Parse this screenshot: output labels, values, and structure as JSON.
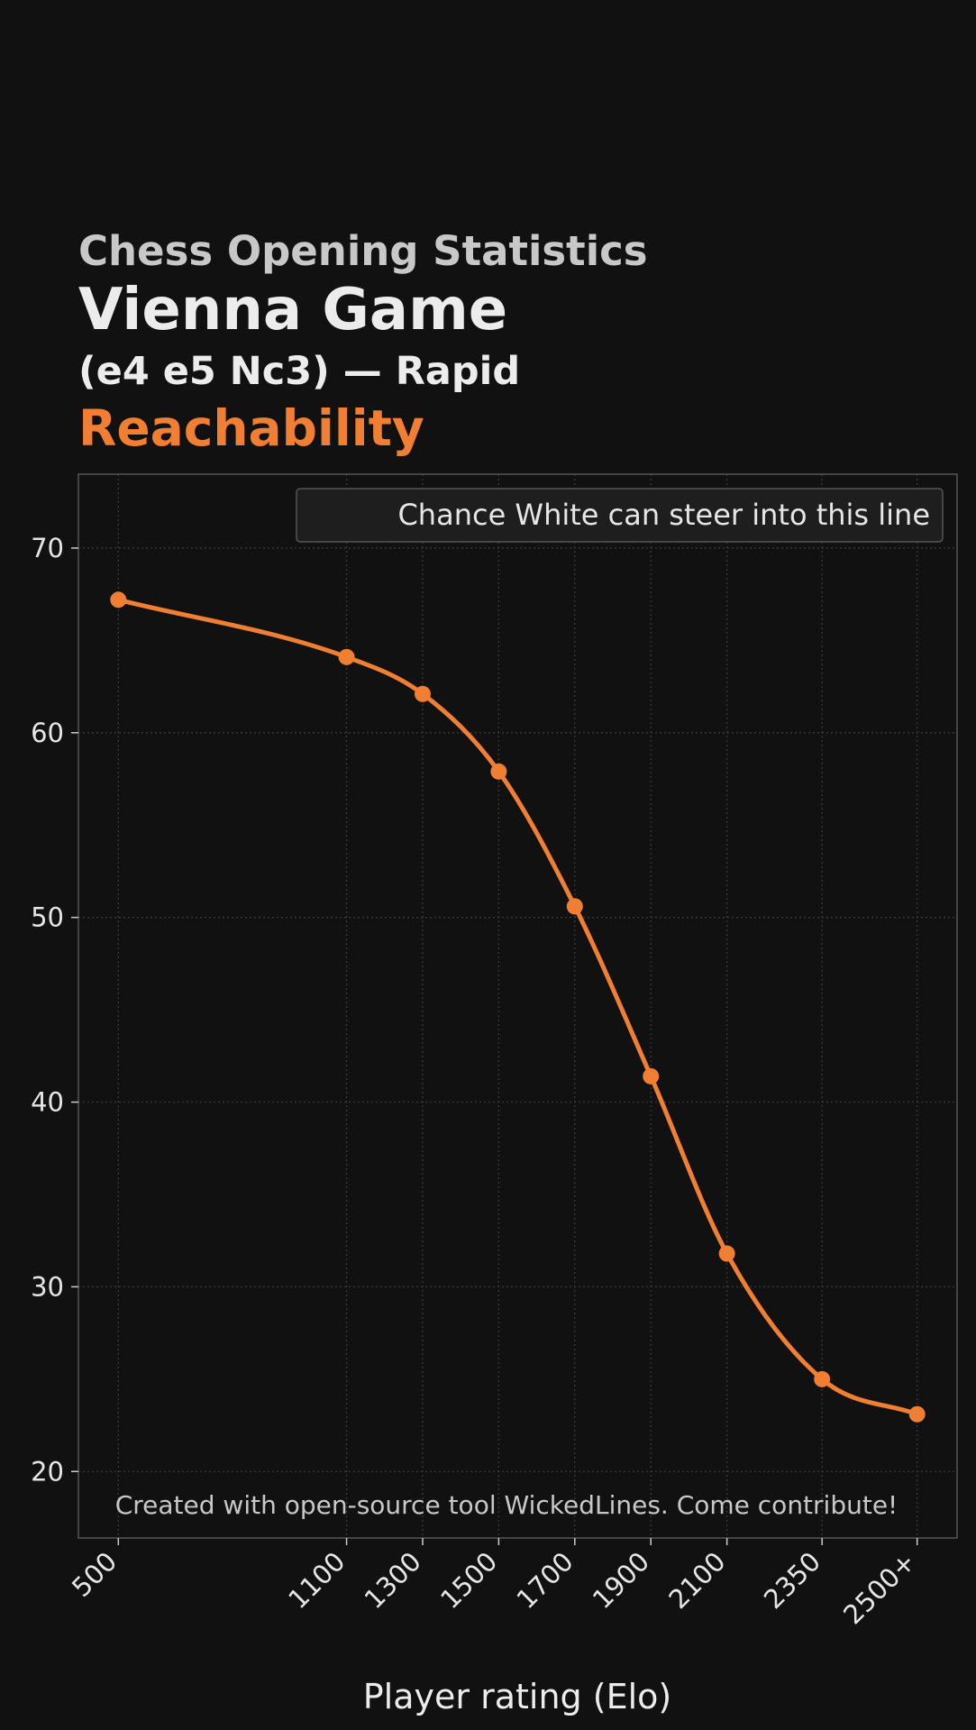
{
  "header": {
    "supertitle": "Chess Opening Statistics",
    "title": "Vienna Game",
    "subtitle": "(e4 e5 Nc3) — Rapid",
    "metric": "Reachability"
  },
  "footer": {
    "credit": "Created with open-source tool WickedLines. Come contribute!"
  },
  "colors": {
    "background": "#111111",
    "accent": "#f07f33",
    "grid": "#3a3a3a",
    "frame": "#555555"
  },
  "chart_data": {
    "type": "line",
    "x": [
      "500",
      "1100",
      "1300",
      "1500",
      "1700",
      "1900",
      "2100",
      "2350",
      "2500+"
    ],
    "x_numeric": [
      500,
      1100,
      1300,
      1500,
      1700,
      1900,
      2100,
      2350,
      2600
    ],
    "series": [
      {
        "name": "Chance White can steer into this line",
        "values": [
          67.2,
          64.1,
          62.1,
          57.9,
          50.6,
          41.4,
          31.8,
          25.0,
          23.1
        ]
      }
    ],
    "xlabel": "Player rating (Elo)",
    "ylabel": "",
    "ylim": [
      16.4,
      74.0
    ],
    "xlim": [
      395,
      2705
    ],
    "yticks": [
      20,
      30,
      40,
      50,
      60,
      70
    ],
    "grid": true,
    "legend": "top-right"
  }
}
